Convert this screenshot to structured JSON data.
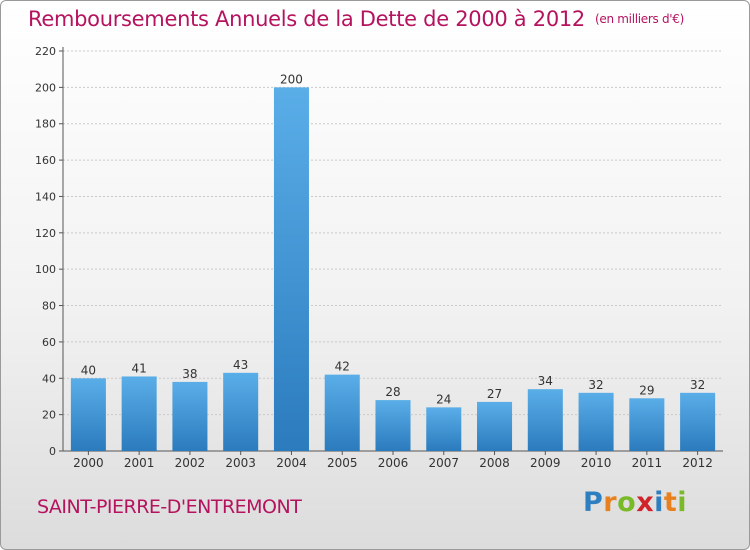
{
  "header": {
    "title": "Remboursements Annuels de la Dette de 2000 à 2012",
    "unit": "(en milliers d'€)"
  },
  "footer": {
    "commune": "SAINT-PIERRE-D'ENTREMONT",
    "logo_letters": [
      {
        "ch": "P",
        "color": "#2e7fc1"
      },
      {
        "ch": "r",
        "color": "#e8801e"
      },
      {
        "ch": "o",
        "color": "#7ab928"
      },
      {
        "ch": "x",
        "color": "#d1242a"
      },
      {
        "ch": "i",
        "color": "#2e7fc1"
      },
      {
        "ch": "t",
        "color": "#e8801e"
      },
      {
        "ch": "i",
        "color": "#7ab928"
      }
    ]
  },
  "colors": {
    "title": "#b5135e",
    "bar_top": "#5aaee8",
    "bar_bottom": "#2b7bbd"
  },
  "chart_data": {
    "type": "bar",
    "categories": [
      "2000",
      "2001",
      "2002",
      "2003",
      "2004",
      "2005",
      "2006",
      "2007",
      "2008",
      "2009",
      "2010",
      "2011",
      "2012"
    ],
    "values": [
      40,
      41,
      38,
      43,
      200,
      42,
      28,
      24,
      27,
      34,
      32,
      29,
      32
    ],
    "ylim": [
      0,
      220
    ],
    "yticks": [
      0,
      20,
      40,
      60,
      80,
      100,
      120,
      140,
      160,
      180,
      200,
      220
    ],
    "grid": true
  }
}
